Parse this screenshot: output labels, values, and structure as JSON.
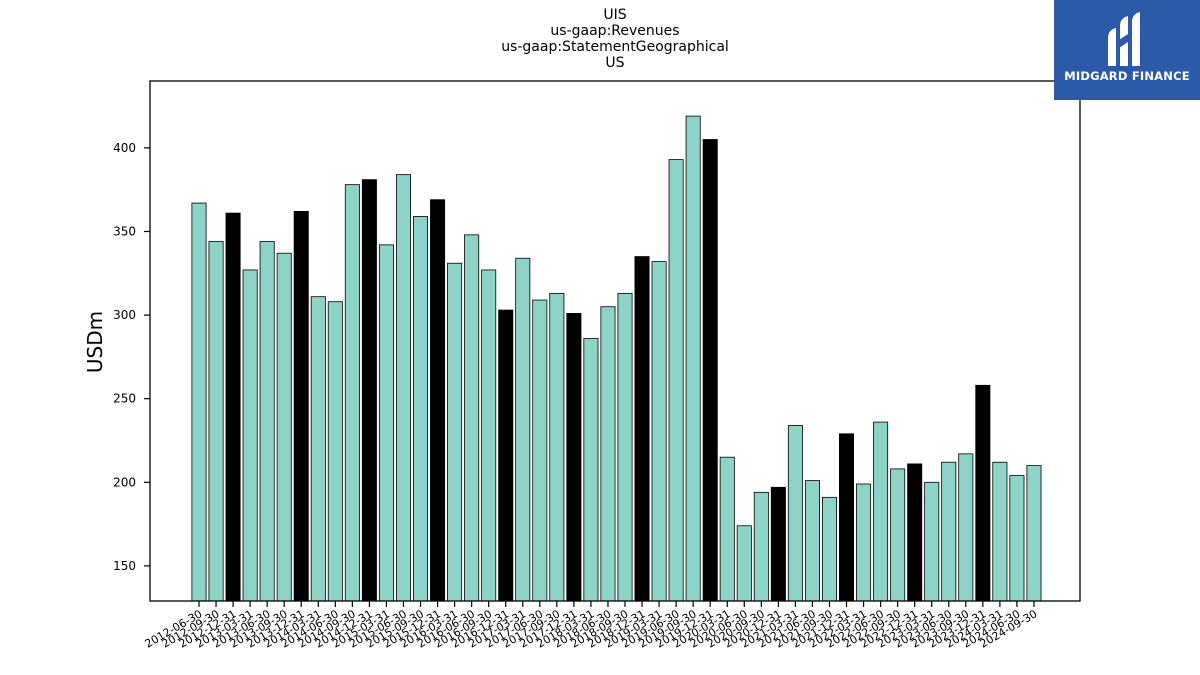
{
  "chart_data": {
    "type": "bar",
    "title_lines": [
      "UIS",
      "us-gaap:Revenues",
      "us-gaap:StatementGeographical",
      "US"
    ],
    "ylabel": "USDm",
    "xlabel": "",
    "ylim": [
      129,
      440
    ],
    "yticks": [
      150,
      200,
      250,
      300,
      350,
      400
    ],
    "grid": false,
    "categories": [
      "2012-06-30",
      "2012-09-30",
      "2012-12-31",
      "2013-03-31",
      "2013-06-30",
      "2013-09-30",
      "2013-12-31",
      "2014-03-31",
      "2014-06-30",
      "2014-09-30",
      "2014-12-31",
      "2015-03-31",
      "2015-06-30",
      "2015-09-30",
      "2015-12-31",
      "2016-03-31",
      "2016-06-30",
      "2016-09-30",
      "2016-12-31",
      "2017-03-31",
      "2017-06-30",
      "2017-09-30",
      "2017-12-31",
      "2018-03-31",
      "2018-06-30",
      "2018-09-30",
      "2018-12-31",
      "2019-03-31",
      "2019-06-30",
      "2019-09-30",
      "2019-12-31",
      "2020-03-31",
      "2020-06-30",
      "2020-09-30",
      "2020-12-31",
      "2021-03-31",
      "2021-06-30",
      "2021-09-30",
      "2021-12-31",
      "2022-03-31",
      "2022-06-30",
      "2022-09-30",
      "2022-12-31",
      "2023-03-31",
      "2023-06-30",
      "2023-09-30",
      "2023-12-31",
      "2024-03-31",
      "2024-06-30",
      "2024-09-30"
    ],
    "values": [
      367,
      344,
      361,
      327,
      344,
      337,
      362,
      311,
      308,
      378,
      381,
      342,
      384,
      359,
      369,
      331,
      348,
      327,
      303,
      334,
      309,
      313,
      301,
      286,
      305,
      313,
      335,
      332,
      393,
      419,
      405,
      215,
      174,
      194,
      197,
      234,
      201,
      191,
      229,
      199,
      236,
      208,
      211,
      200,
      212,
      217,
      258,
      212,
      204,
      210
    ],
    "highlight_categories": [
      "2012-12-31",
      "2013-12-31",
      "2014-12-31",
      "2015-12-31",
      "2016-12-31",
      "2017-12-31",
      "2018-12-31",
      "2019-12-31",
      "2020-12-31",
      "2021-12-31",
      "2022-12-31",
      "2023-12-31"
    ],
    "colors": {
      "bar": "#8dd3c7",
      "highlight": "#000000",
      "edge": "#000000"
    },
    "x_tick_label_rotation": 30
  },
  "logo": {
    "text": "MIDGARD FINANCE",
    "background": "#2c5aa8"
  }
}
